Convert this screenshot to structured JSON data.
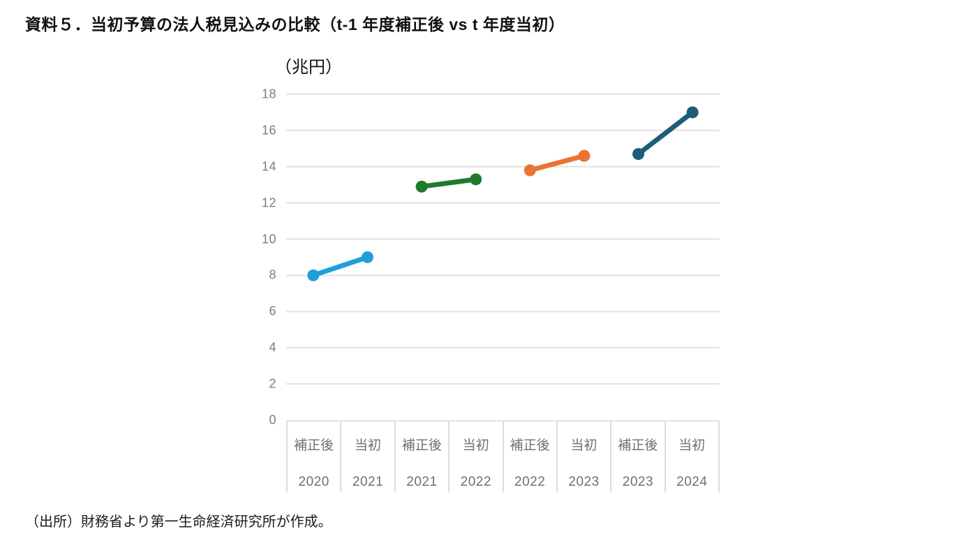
{
  "header": {
    "title": "資料５．当初予算の法人税見込みの比較（t-1 年度補正後 vs t 年度当初）"
  },
  "footer": {
    "source": "（出所）財務省より第一生命経済研究所が作成。"
  },
  "chart_data": {
    "type": "line",
    "title": "資料５．当初予算の法人税見込みの比較（t-1 年度補正後 vs t 年度当初）",
    "unit_label": "（兆円）",
    "xlabel": "",
    "ylabel": "（兆円）",
    "ylim": [
      0,
      18
    ],
    "yticks": [
      0,
      2,
      4,
      6,
      8,
      10,
      12,
      14,
      16,
      18
    ],
    "grid": true,
    "legend": "none",
    "grid_color": "#e2e2e2",
    "axis_text_color": "#7d7d7d",
    "categories": [
      {
        "period": "補正後",
        "year": "2020"
      },
      {
        "period": "当初",
        "year": "2021"
      },
      {
        "period": "補正後",
        "year": "2021"
      },
      {
        "period": "当初",
        "year": "2022"
      },
      {
        "period": "補正後",
        "year": "2022"
      },
      {
        "period": "当初",
        "year": "2023"
      },
      {
        "period": "補正後",
        "year": "2023"
      },
      {
        "period": "当初",
        "year": "2024"
      }
    ],
    "series": [
      {
        "name": "2020補正後→2021当初",
        "color": "#1f9fd8",
        "points": [
          {
            "x": 0,
            "y": 8.0
          },
          {
            "x": 1,
            "y": 9.0
          }
        ]
      },
      {
        "name": "2021補正後→2022当初",
        "color": "#217a2c",
        "points": [
          {
            "x": 2,
            "y": 12.9
          },
          {
            "x": 3,
            "y": 13.3
          }
        ]
      },
      {
        "name": "2022補正後→2023当初",
        "color": "#ec7333",
        "points": [
          {
            "x": 4,
            "y": 13.8
          },
          {
            "x": 5,
            "y": 14.6
          }
        ]
      },
      {
        "name": "2023補正後→2024当初",
        "color": "#1f5c7a",
        "points": [
          {
            "x": 6,
            "y": 14.7
          },
          {
            "x": 7,
            "y": 17.0
          }
        ]
      }
    ]
  }
}
